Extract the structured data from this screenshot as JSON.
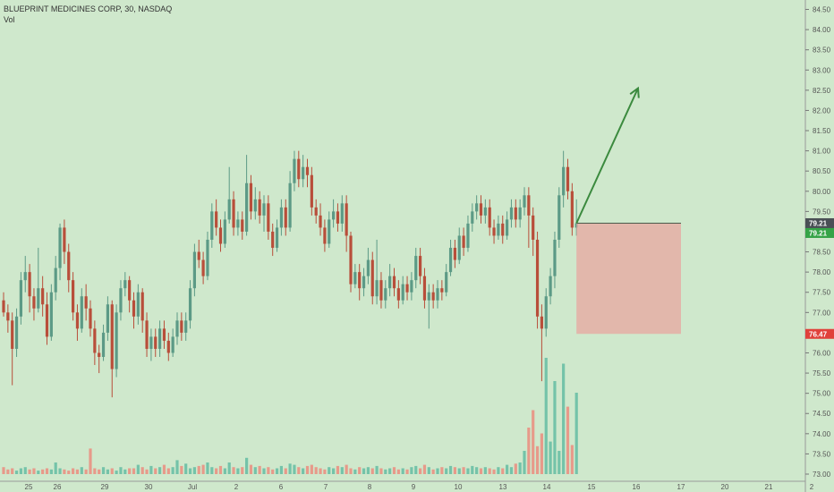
{
  "header": {
    "symbol_line": "BLUEPRINT MEDICINES CORP, 30, NASDAQ",
    "volume_label": "Vol"
  },
  "colors": {
    "background": "#cfe8cc",
    "up": "#5c9a86",
    "down": "#b84e3a",
    "vol_up": "#74c3a9",
    "vol_down": "#e79a8a",
    "arrow": "#3b8a3e",
    "box_fill": "#e8a7a0",
    "price_badge_dark": "#4a4f55",
    "price_badge_green": "#35a347",
    "price_badge_red": "#e0413b"
  },
  "chart_data": {
    "type": "candlestick",
    "title": "BLUEPRINT MEDICINES CORP, 30, NASDAQ",
    "ylim": [
      73.0,
      84.6
    ],
    "y_ticks": [
      "73.00",
      "73.50",
      "74.00",
      "74.50",
      "75.00",
      "75.50",
      "76.00",
      "76.50",
      "77.00",
      "77.50",
      "78.00",
      "78.50",
      "79.00",
      "79.50",
      "80.00",
      "80.50",
      "81.00",
      "81.50",
      "82.00",
      "82.50",
      "83.00",
      "83.50",
      "84.00",
      "84.50"
    ],
    "x_ticks": [
      "25",
      "26",
      "29",
      "30",
      "Jul",
      "2",
      "6",
      "7",
      "8",
      "9",
      "10",
      "13",
      "14",
      "15",
      "16",
      "17",
      "20",
      "21",
      "2"
    ],
    "price_labels": [
      {
        "text": "79.21",
        "value": 79.21,
        "kind": "dark"
      },
      {
        "text": "79.21",
        "value": 79.21,
        "kind": "green"
      },
      {
        "text": "76.47",
        "value": 76.47,
        "kind": "red"
      }
    ],
    "candles": [
      [
        77.3,
        77.0,
        77.5,
        76.9
      ],
      [
        77.0,
        76.8,
        77.2,
        76.5
      ],
      [
        76.8,
        76.1,
        77.0,
        75.2
      ],
      [
        76.1,
        76.9,
        77.1,
        75.9
      ],
      [
        76.9,
        77.8,
        78.0,
        76.7
      ],
      [
        77.8,
        78.0,
        78.4,
        77.5
      ],
      [
        78.0,
        77.4,
        78.2,
        77.0
      ],
      [
        77.4,
        77.1,
        77.6,
        76.8
      ],
      [
        77.1,
        77.6,
        78.6,
        77.0
      ],
      [
        77.6,
        77.2,
        77.9,
        76.9
      ],
      [
        77.2,
        76.4,
        77.5,
        76.2
      ],
      [
        76.4,
        77.5,
        77.7,
        76.3
      ],
      [
        77.5,
        78.1,
        78.4,
        77.3
      ],
      [
        78.1,
        79.1,
        79.2,
        77.8
      ],
      [
        79.1,
        78.5,
        79.3,
        78.2
      ],
      [
        78.5,
        77.8,
        78.7,
        77.5
      ],
      [
        77.8,
        77.0,
        78.0,
        76.8
      ],
      [
        77.0,
        76.6,
        77.2,
        76.3
      ],
      [
        76.6,
        77.4,
        77.6,
        76.5
      ],
      [
        77.4,
        77.1,
        77.7,
        76.8
      ],
      [
        77.1,
        76.6,
        77.3,
        76.4
      ],
      [
        76.6,
        76.0,
        76.8,
        75.7
      ],
      [
        76.0,
        75.9,
        76.2,
        75.5
      ],
      [
        75.9,
        76.5,
        76.7,
        75.8
      ],
      [
        76.5,
        77.2,
        77.4,
        76.3
      ],
      [
        77.2,
        75.6,
        77.3,
        74.9
      ],
      [
        75.6,
        77.0,
        77.2,
        75.4
      ],
      [
        77.0,
        77.6,
        77.8,
        76.8
      ],
      [
        77.6,
        77.8,
        78.0,
        77.4
      ],
      [
        77.8,
        77.3,
        77.9,
        77.0
      ],
      [
        77.3,
        76.9,
        77.5,
        76.6
      ],
      [
        76.9,
        77.5,
        77.7,
        76.7
      ],
      [
        77.5,
        76.8,
        77.6,
        76.5
      ],
      [
        76.8,
        76.1,
        77.0,
        75.9
      ],
      [
        76.1,
        76.4,
        76.6,
        75.8
      ],
      [
        76.4,
        76.1,
        76.6,
        75.9
      ],
      [
        76.1,
        76.6,
        76.8,
        75.9
      ],
      [
        76.6,
        76.3,
        76.8,
        76.1
      ],
      [
        76.3,
        76.0,
        76.5,
        75.8
      ],
      [
        76.0,
        76.4,
        76.6,
        75.9
      ],
      [
        76.4,
        76.8,
        77.0,
        76.2
      ],
      [
        76.8,
        76.5,
        77.0,
        76.3
      ],
      [
        76.5,
        76.8,
        77.0,
        76.3
      ],
      [
        76.8,
        77.6,
        77.8,
        76.6
      ],
      [
        77.6,
        78.5,
        78.7,
        77.4
      ],
      [
        78.5,
        78.3,
        78.8,
        78.1
      ],
      [
        78.3,
        77.9,
        78.5,
        77.7
      ],
      [
        77.9,
        78.8,
        79.0,
        77.8
      ],
      [
        78.8,
        79.5,
        79.7,
        78.6
      ],
      [
        79.5,
        79.1,
        79.8,
        78.9
      ],
      [
        79.1,
        78.7,
        79.3,
        78.5
      ],
      [
        78.7,
        79.3,
        79.5,
        78.6
      ],
      [
        79.3,
        79.8,
        80.6,
        79.2
      ],
      [
        79.8,
        79.1,
        80.0,
        78.9
      ],
      [
        79.1,
        79.3,
        79.5,
        78.9
      ],
      [
        79.3,
        79.0,
        79.5,
        78.8
      ],
      [
        79.0,
        80.2,
        80.9,
        78.9
      ],
      [
        80.2,
        79.5,
        80.4,
        79.3
      ],
      [
        79.5,
        79.8,
        80.1,
        79.3
      ],
      [
        79.8,
        79.4,
        80.0,
        79.2
      ],
      [
        79.4,
        79.7,
        79.9,
        79.0
      ],
      [
        79.7,
        79.0,
        79.9,
        78.8
      ],
      [
        79.0,
        78.6,
        79.2,
        78.4
      ],
      [
        78.6,
        79.1,
        79.3,
        78.5
      ],
      [
        79.1,
        79.6,
        79.8,
        78.9
      ],
      [
        79.6,
        79.1,
        79.8,
        78.9
      ],
      [
        79.1,
        80.2,
        80.5,
        79.0
      ],
      [
        80.2,
        80.8,
        81.0,
        80.0
      ],
      [
        80.8,
        80.3,
        81.0,
        80.1
      ],
      [
        80.3,
        80.6,
        80.9,
        80.1
      ],
      [
        80.6,
        80.4,
        80.8,
        80.1
      ],
      [
        80.4,
        79.6,
        80.6,
        79.4
      ],
      [
        79.6,
        79.4,
        79.8,
        79.2
      ],
      [
        79.4,
        79.1,
        79.7,
        78.9
      ],
      [
        79.1,
        78.7,
        79.3,
        78.5
      ],
      [
        78.7,
        79.3,
        79.5,
        78.6
      ],
      [
        79.3,
        79.5,
        79.8,
        79.1
      ],
      [
        79.5,
        79.2,
        79.7,
        79.0
      ],
      [
        79.2,
        79.7,
        79.9,
        79.0
      ],
      [
        79.7,
        78.9,
        79.9,
        78.5
      ],
      [
        78.9,
        77.7,
        79.0,
        77.5
      ],
      [
        77.7,
        78.0,
        78.2,
        77.6
      ],
      [
        78.0,
        77.6,
        78.2,
        77.3
      ],
      [
        77.6,
        77.9,
        78.1,
        77.4
      ],
      [
        77.9,
        78.3,
        78.6,
        77.7
      ],
      [
        78.3,
        77.4,
        78.5,
        77.2
      ],
      [
        77.4,
        77.8,
        78.8,
        77.2
      ],
      [
        77.8,
        77.3,
        78.0,
        77.1
      ],
      [
        77.3,
        77.6,
        77.8,
        77.1
      ],
      [
        77.6,
        77.9,
        78.2,
        77.4
      ],
      [
        77.9,
        77.6,
        78.1,
        77.4
      ],
      [
        77.6,
        77.3,
        77.8,
        77.1
      ],
      [
        77.3,
        77.7,
        77.9,
        77.2
      ],
      [
        77.7,
        77.5,
        77.9,
        77.3
      ],
      [
        77.5,
        77.8,
        78.0,
        77.3
      ],
      [
        77.8,
        78.4,
        78.6,
        77.6
      ],
      [
        78.4,
        77.9,
        78.6,
        77.7
      ],
      [
        77.9,
        77.3,
        78.1,
        77.1
      ],
      [
        77.3,
        77.5,
        77.7,
        76.6
      ],
      [
        77.5,
        77.3,
        77.7,
        77.1
      ],
      [
        77.3,
        77.6,
        77.8,
        77.1
      ],
      [
        77.6,
        77.5,
        77.8,
        77.3
      ],
      [
        77.5,
        78.0,
        78.2,
        77.4
      ],
      [
        78.0,
        78.6,
        78.8,
        77.9
      ],
      [
        78.6,
        78.3,
        78.8,
        78.1
      ],
      [
        78.3,
        78.9,
        79.1,
        78.2
      ],
      [
        78.9,
        78.6,
        79.1,
        78.4
      ],
      [
        78.6,
        79.2,
        79.4,
        78.5
      ],
      [
        79.2,
        79.5,
        79.7,
        79.0
      ],
      [
        79.5,
        79.7,
        79.9,
        79.3
      ],
      [
        79.7,
        79.4,
        79.9,
        79.2
      ],
      [
        79.4,
        79.6,
        79.8,
        79.2
      ],
      [
        79.6,
        79.1,
        79.8,
        78.9
      ],
      [
        79.1,
        78.9,
        79.3,
        78.7
      ],
      [
        78.9,
        79.2,
        79.4,
        78.8
      ],
      [
        79.2,
        78.9,
        79.4,
        78.7
      ],
      [
        78.9,
        79.3,
        79.5,
        78.8
      ],
      [
        79.3,
        79.6,
        79.8,
        79.1
      ],
      [
        79.6,
        79.3,
        79.8,
        79.1
      ],
      [
        79.3,
        79.6,
        79.8,
        79.1
      ],
      [
        79.6,
        79.9,
        80.1,
        79.4
      ],
      [
        79.9,
        79.4,
        80.1,
        78.6
      ],
      [
        79.4,
        78.8,
        79.6,
        78.4
      ],
      [
        78.8,
        76.9,
        79.0,
        76.6
      ],
      [
        76.9,
        76.6,
        77.2,
        75.3
      ],
      [
        76.6,
        77.4,
        77.6,
        76.4
      ],
      [
        77.4,
        77.9,
        78.1,
        77.2
      ],
      [
        77.9,
        78.8,
        79.0,
        77.6
      ],
      [
        78.8,
        79.9,
        80.1,
        78.6
      ],
      [
        79.9,
        80.6,
        81.0,
        79.6
      ],
      [
        80.6,
        80.0,
        80.8,
        79.8
      ],
      [
        80.0,
        79.1,
        80.2,
        78.9
      ],
      [
        79.1,
        79.21,
        79.8,
        78.9
      ]
    ],
    "volume": [
      0.06,
      0.04,
      0.05,
      0.03,
      0.05,
      0.06,
      0.04,
      0.05,
      0.03,
      0.04,
      0.05,
      0.04,
      0.1,
      0.05,
      0.04,
      0.03,
      0.05,
      0.04,
      0.06,
      0.04,
      0.22,
      0.05,
      0.04,
      0.06,
      0.04,
      0.05,
      0.03,
      0.06,
      0.04,
      0.05,
      0.05,
      0.08,
      0.06,
      0.04,
      0.07,
      0.05,
      0.06,
      0.08,
      0.05,
      0.06,
      0.12,
      0.07,
      0.09,
      0.05,
      0.06,
      0.07,
      0.08,
      0.1,
      0.06,
      0.05,
      0.07,
      0.05,
      0.1,
      0.06,
      0.05,
      0.06,
      0.14,
      0.08,
      0.06,
      0.07,
      0.05,
      0.06,
      0.04,
      0.05,
      0.07,
      0.05,
      0.09,
      0.08,
      0.06,
      0.05,
      0.07,
      0.08,
      0.06,
      0.05,
      0.04,
      0.06,
      0.05,
      0.07,
      0.06,
      0.08,
      0.05,
      0.04,
      0.06,
      0.05,
      0.06,
      0.05,
      0.07,
      0.05,
      0.04,
      0.05,
      0.06,
      0.04,
      0.05,
      0.04,
      0.06,
      0.07,
      0.05,
      0.08,
      0.06,
      0.04,
      0.05,
      0.06,
      0.05,
      0.07,
      0.06,
      0.05,
      0.06,
      0.05,
      0.07,
      0.06,
      0.05,
      0.06,
      0.05,
      0.04,
      0.06,
      0.05,
      0.08,
      0.06,
      0.09,
      0.1,
      0.2,
      0.4,
      0.55,
      0.24,
      0.35,
      1.0,
      0.28,
      0.8,
      0.2,
      0.95,
      0.58,
      0.25,
      0.7
    ]
  },
  "drawings": {
    "arrow_start_value": 79.21,
    "arrow_end_value": 82.55,
    "arrow_end_x_tick": "16",
    "box_top_value": 79.21,
    "box_bottom_value": 76.47,
    "box_end_x_tick": "17"
  }
}
